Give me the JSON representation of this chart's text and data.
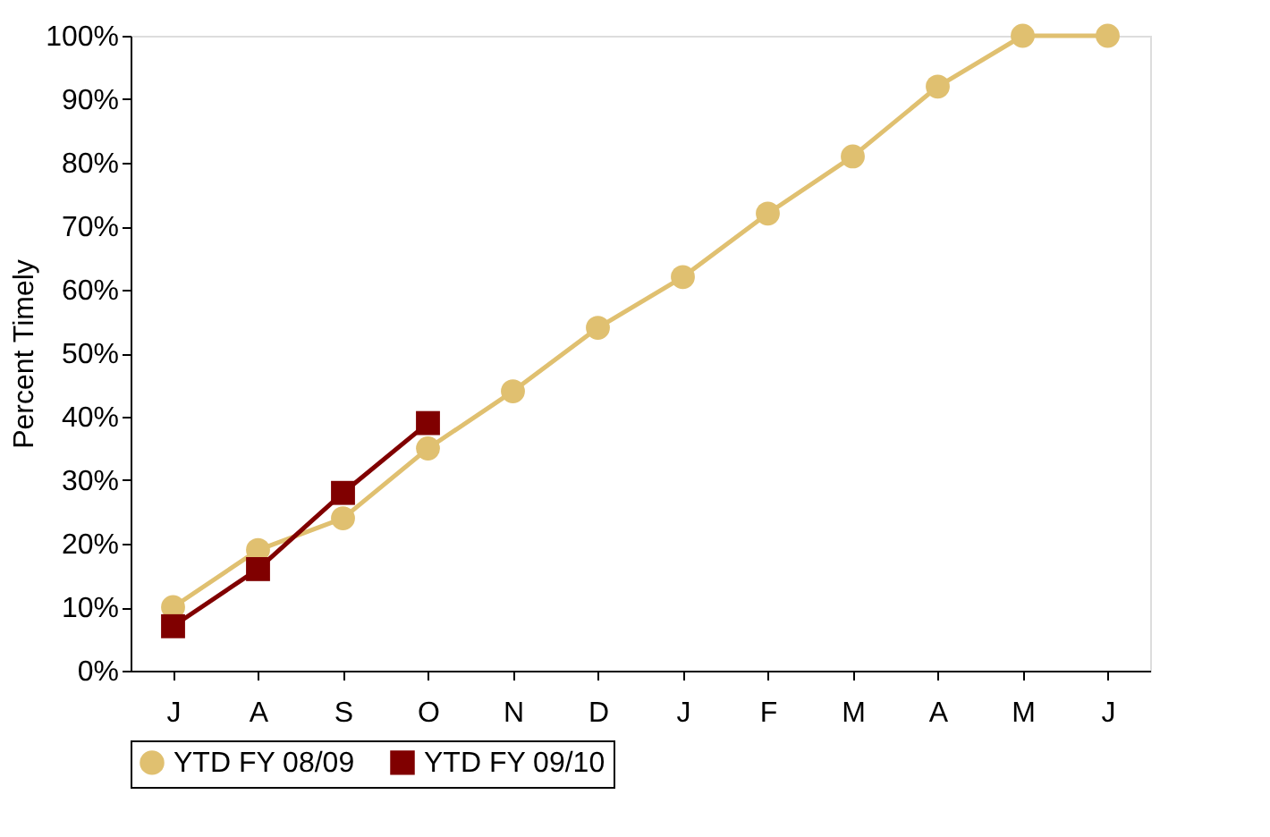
{
  "chart_data": {
    "type": "line",
    "ylabel": "Percent Timely",
    "categories": [
      "J",
      "A",
      "S",
      "O",
      "N",
      "D",
      "J",
      "F",
      "M",
      "A",
      "M",
      "J"
    ],
    "series": [
      {
        "name": "YTD FY 08/09",
        "color": "#e0c070",
        "marker": "circle",
        "values": [
          10,
          19,
          24,
          35,
          44,
          54,
          62,
          72,
          81,
          92,
          100,
          100
        ]
      },
      {
        "name": "YTD FY 09/10",
        "color": "#800000",
        "marker": "square",
        "values": [
          7,
          16,
          28,
          39,
          null,
          null,
          null,
          null,
          null,
          null,
          null,
          null
        ]
      }
    ],
    "ylim": [
      0,
      100
    ],
    "yticks": [
      {
        "value": 0,
        "label": "0%"
      },
      {
        "value": 10,
        "label": "10%"
      },
      {
        "value": 20,
        "label": "20%"
      },
      {
        "value": 30,
        "label": "30%"
      },
      {
        "value": 40,
        "label": "40%"
      },
      {
        "value": 50,
        "label": "50%"
      },
      {
        "value": 60,
        "label": "60%"
      },
      {
        "value": 70,
        "label": "70%"
      },
      {
        "value": 80,
        "label": "80%"
      },
      {
        "value": 90,
        "label": "90%"
      },
      {
        "value": 100,
        "label": "100%"
      }
    ],
    "grid": false,
    "legend": "bottom",
    "line_style": "solid"
  }
}
